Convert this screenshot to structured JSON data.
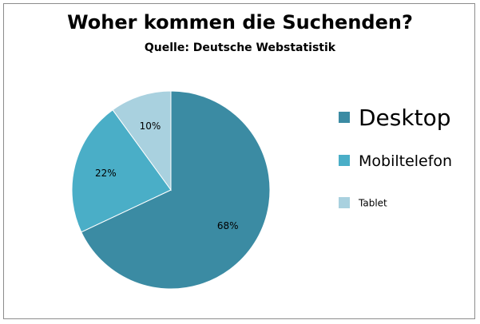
{
  "chart_data": {
    "type": "pie",
    "title": "Woher kommen die Suchenden?",
    "subtitle": "Quelle: Deutsche Webstatistik",
    "categories": [
      "Desktop",
      "Mobiltelefon",
      "Tablet"
    ],
    "values": [
      68,
      22,
      10
    ],
    "data_labels": [
      "68%",
      "22%",
      "10%"
    ],
    "colors": [
      "#3b8ba3",
      "#4aaec7",
      "#a9d1df"
    ],
    "legend_position": "right",
    "start_angle": "12 o'clock",
    "direction": "clockwise"
  }
}
